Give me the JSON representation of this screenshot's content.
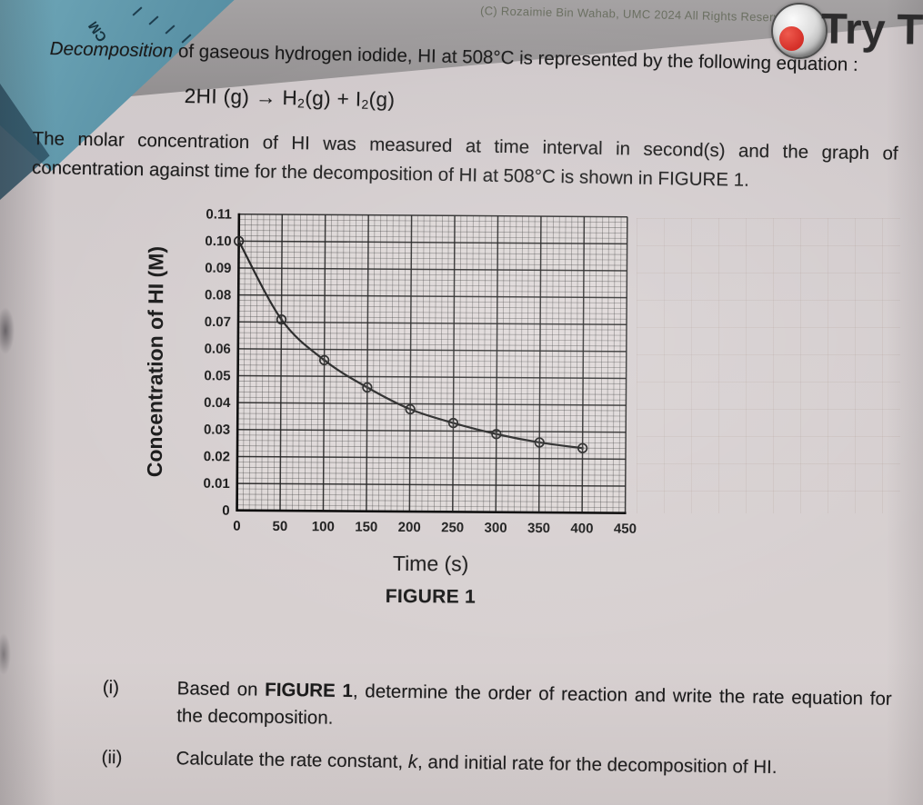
{
  "header": {
    "copyright": "(C) Rozaimie Bin Wahab, UMC 2024 All Rights Reserved",
    "logo_text": "Try T",
    "logo_icon": "lens-ring-with-red-dot",
    "ruler_label": "CM"
  },
  "problem": {
    "title_rich": [
      {
        "t": "Decomposition",
        "i": true
      },
      {
        "t": " of gaseous hydrogen iodide, HI at 508°C is represented by the following equation :"
      }
    ],
    "equation_rich": [
      {
        "t": "2HI (g) → H"
      },
      {
        "t": "2",
        "sub": true
      },
      {
        "t": "(g) + I"
      },
      {
        "t": "2",
        "sub": true
      },
      {
        "t": "(g)"
      }
    ],
    "paragraph_line1": "The molar concentration of HI was measured at time interval in second(s) and the graph of",
    "paragraph_line2": "concentration against time for the decomposition of HI at 508°C is shown in FIGURE 1."
  },
  "figure": {
    "caption": "FIGURE 1"
  },
  "questions": [
    {
      "label": "(i)",
      "text_rich": [
        {
          "t": "Based on "
        },
        {
          "t": "FIGURE 1",
          "b": true
        },
        {
          "t": ", determine the order of reaction and write the rate equation for the decomposition."
        }
      ]
    },
    {
      "label": "(ii)",
      "text_rich": [
        {
          "t": "Calculate the rate constant, "
        },
        {
          "t": "k",
          "i": true
        },
        {
          "t": ", and initial rate for the decomposition of HI."
        }
      ]
    }
  ],
  "chart_data": {
    "type": "line",
    "title": "",
    "xlabel": "Time (s)",
    "ylabel": "Concentration of HI (M)",
    "x": [
      0,
      50,
      100,
      150,
      200,
      250,
      300,
      350,
      400
    ],
    "y": [
      0.1,
      0.071,
      0.056,
      0.046,
      0.038,
      0.033,
      0.029,
      0.026,
      0.024
    ],
    "xlim": [
      0,
      450
    ],
    "ylim": [
      0,
      0.11
    ],
    "x_ticks": [
      "0",
      "50",
      "100",
      "150",
      "200",
      "250",
      "300",
      "350",
      "400",
      "450"
    ],
    "y_ticks": [
      "0",
      "0.01",
      "0.02",
      "0.03",
      "0.04",
      "0.05",
      "0.06",
      "0.07",
      "0.08",
      "0.09",
      "0.10",
      "0.11"
    ],
    "grid": "graph-paper-fine",
    "marker": "open-circle",
    "legend": null
  }
}
